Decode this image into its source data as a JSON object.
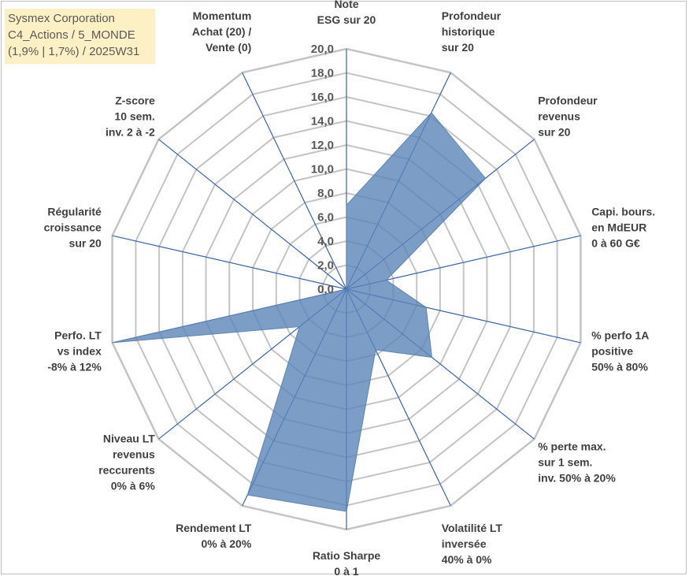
{
  "title_box": {
    "line1": "Sysmex Corporation",
    "line2": "C4_Actions / 5_MONDE",
    "line3": "(1,9% | 1,7%) / 2025W31"
  },
  "chart_data": {
    "type": "radar",
    "axes": [
      [
        "Note",
        "ESG sur 20"
      ],
      [
        "Profondeur",
        "historique",
        "sur 20"
      ],
      [
        "Profondeur",
        "revenus",
        "sur 20"
      ],
      [
        "Capi. bours.",
        "en MdEUR",
        "0 à 60 G€"
      ],
      [
        "% perfo 1A",
        "positive",
        "50% à 80%"
      ],
      [
        "% perte max.",
        "sur 1 sem.",
        "inv. 50% à 20%"
      ],
      [
        "Volatilité LT",
        "inversée",
        "40% à 0%"
      ],
      [
        "Ratio Sharpe",
        "0 à 1"
      ],
      [
        "Rendement LT",
        "0% à 20%"
      ],
      [
        "Niveau LT",
        "revenus",
        "reccurents",
        "0% à 6%"
      ],
      [
        "Perfo. LT",
        "vs index",
        "-8% à 12%"
      ],
      [
        "Régularité",
        "croissance",
        "sur 20"
      ],
      [
        "Z-score",
        "10 sem.",
        "inv. 2 à -2"
      ],
      [
        "Momentum",
        "Achat (20) /",
        "Vente (0)"
      ]
    ],
    "values": [
      7.0,
      16.3,
      14.8,
      3.4,
      6.8,
      9.1,
      5.6,
      18.5,
      19.0,
      5.0,
      20.0,
      0.0,
      0.0,
      0.0
    ],
    "ticks": [
      "0,0",
      "2,0",
      "4,0",
      "6,0",
      "8,0",
      "10,0",
      "12,0",
      "14,0",
      "16,0",
      "18,0",
      "20,0"
    ],
    "rlim": [
      0,
      20
    ],
    "grid": true,
    "colors": {
      "fill": "#5b84b8",
      "fill_opacity": 0.8,
      "spoke": "#3a62b0",
      "grid": "#c4c4c4",
      "title_bg": "#fdf0c4"
    }
  }
}
